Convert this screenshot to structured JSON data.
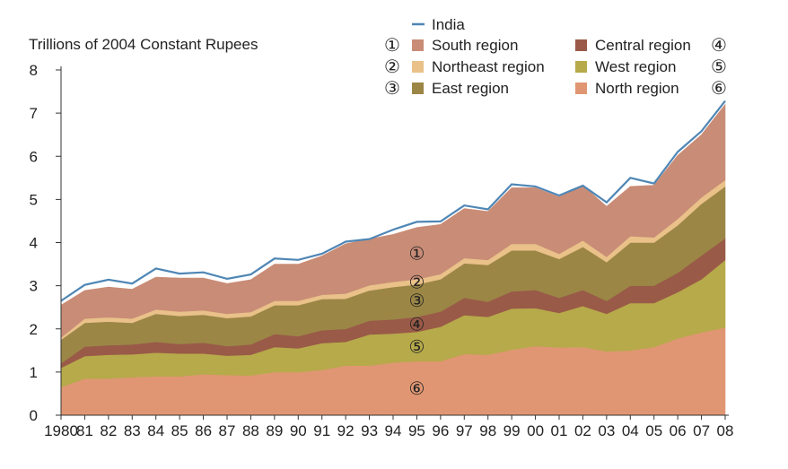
{
  "chart_data": {
    "type": "area",
    "stacked": true,
    "ylabel": "Trillions of 2004 Constant Rupees",
    "ylim": [
      0,
      8
    ],
    "yticks": [
      "0",
      "1",
      "2",
      "3",
      "4",
      "5",
      "6",
      "7",
      "8"
    ],
    "x_tick_labels": [
      "1980",
      "81",
      "82",
      "83",
      "84",
      "85",
      "86",
      "87",
      "88",
      "89",
      "90",
      "91",
      "92",
      "93",
      "94",
      "95",
      "96",
      "97",
      "98",
      "99",
      "00",
      "01",
      "02",
      "03",
      "04",
      "05",
      "06",
      "07",
      "08"
    ],
    "x": [
      1980,
      1981,
      1982,
      1983,
      1984,
      1985,
      1986,
      1987,
      1988,
      1989,
      1990,
      1991,
      1992,
      1993,
      1994,
      1995,
      1996,
      1997,
      1998,
      1999,
      2000,
      2001,
      2002,
      2003,
      2004,
      2005,
      2006,
      2007,
      2008
    ],
    "grid": false,
    "legend_position": "top-right",
    "series": [
      {
        "name": "North region",
        "marker": "⑥",
        "color": "#e09673",
        "values": [
          0.65,
          0.85,
          0.85,
          0.88,
          0.9,
          0.9,
          0.95,
          0.93,
          0.92,
          1.0,
          1.0,
          1.05,
          1.15,
          1.15,
          1.22,
          1.25,
          1.25,
          1.42,
          1.4,
          1.52,
          1.6,
          1.57,
          1.58,
          1.48,
          1.5,
          1.58,
          1.78,
          1.92,
          2.03
        ]
      },
      {
        "name": "West region",
        "marker": "⑤",
        "color": "#b6aa4a",
        "values": [
          0.45,
          0.52,
          0.55,
          0.53,
          0.55,
          0.53,
          0.48,
          0.45,
          0.48,
          0.58,
          0.55,
          0.62,
          0.55,
          0.72,
          0.67,
          0.68,
          0.8,
          0.9,
          0.88,
          0.95,
          0.88,
          0.8,
          0.95,
          0.87,
          1.1,
          1.02,
          1.07,
          1.23,
          1.57
        ]
      },
      {
        "name": "Central region",
        "marker": "④",
        "color": "#9a5a48",
        "values": [
          0.1,
          0.22,
          0.22,
          0.23,
          0.25,
          0.22,
          0.25,
          0.22,
          0.24,
          0.3,
          0.28,
          0.3,
          0.3,
          0.32,
          0.33,
          0.35,
          0.35,
          0.4,
          0.35,
          0.4,
          0.42,
          0.35,
          0.37,
          0.3,
          0.4,
          0.4,
          0.45,
          0.55,
          0.5
        ]
      },
      {
        "name": "East region",
        "marker": "③",
        "color": "#9b8646",
        "values": [
          0.55,
          0.55,
          0.55,
          0.5,
          0.65,
          0.65,
          0.65,
          0.65,
          0.65,
          0.67,
          0.72,
          0.72,
          0.7,
          0.7,
          0.75,
          0.75,
          0.75,
          0.8,
          0.85,
          0.95,
          0.92,
          0.9,
          1.0,
          0.9,
          1.0,
          1.0,
          1.1,
          1.2,
          1.2
        ]
      },
      {
        "name": "Northeast region",
        "marker": "②",
        "color": "#e9c189",
        "values": [
          0.05,
          0.1,
          0.1,
          0.1,
          0.1,
          0.1,
          0.1,
          0.1,
          0.1,
          0.1,
          0.1,
          0.1,
          0.12,
          0.12,
          0.12,
          0.12,
          0.12,
          0.12,
          0.12,
          0.15,
          0.15,
          0.12,
          0.15,
          0.12,
          0.15,
          0.12,
          0.15,
          0.15,
          0.15
        ]
      },
      {
        "name": "South region",
        "marker": "①",
        "color": "#c98c76",
        "values": [
          0.75,
          0.65,
          0.7,
          0.68,
          0.75,
          0.78,
          0.75,
          0.7,
          0.75,
          0.85,
          0.85,
          0.9,
          1.15,
          1.07,
          1.1,
          1.2,
          1.15,
          1.15,
          1.12,
          1.3,
          1.3,
          1.32,
          1.27,
          1.17,
          1.15,
          1.21,
          1.47,
          1.45,
          1.75
        ]
      }
    ],
    "total_line": {
      "name": "India",
      "color": "#4f86b5",
      "values": [
        2.65,
        3.02,
        3.14,
        3.05,
        3.4,
        3.28,
        3.31,
        3.16,
        3.26,
        3.63,
        3.6,
        3.74,
        4.02,
        4.08,
        4.3,
        4.48,
        4.49,
        4.86,
        4.77,
        5.35,
        5.3,
        5.09,
        5.32,
        4.93,
        5.5,
        5.37,
        6.1,
        6.58,
        7.28
      ]
    },
    "area_labels": {
      "x": 1995,
      "markers": [
        "①",
        "②",
        "③",
        "④",
        "⑤",
        "⑥"
      ],
      "series_order": [
        5,
        4,
        3,
        2,
        1,
        0
      ]
    }
  }
}
